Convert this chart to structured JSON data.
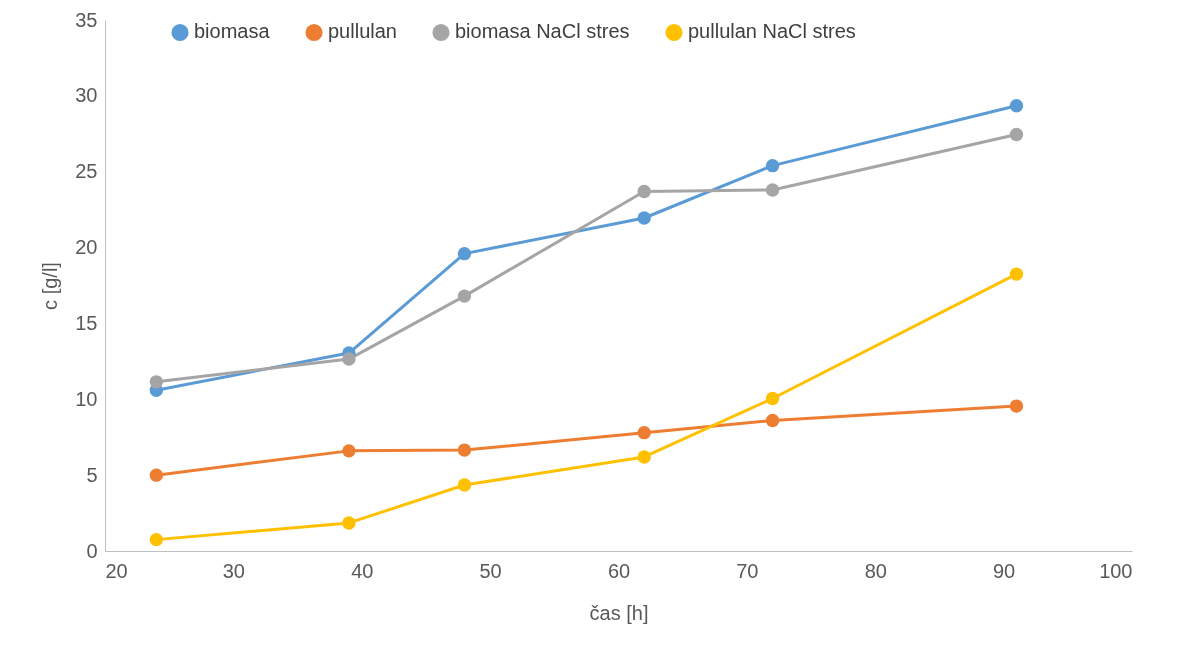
{
  "chart_data": {
    "type": "line",
    "xlabel": "čas [h]",
    "ylabel": "c [g/l]",
    "x": [
      24,
      39,
      48,
      62,
      72,
      91
    ],
    "series": [
      {
        "name": "biomasa",
        "color": "#5b9bd5",
        "values": [
          10.6,
          13.05,
          19.6,
          21.95,
          25.4,
          29.35
        ]
      },
      {
        "name": "pullulan",
        "color": "#ed7d31",
        "values": [
          5.0,
          6.6,
          6.65,
          7.8,
          8.6,
          9.55
        ]
      },
      {
        "name": "biomasa NaCl stres",
        "color": "#a5a5a5",
        "values": [
          11.15,
          12.65,
          16.8,
          23.7,
          23.8,
          27.45
        ]
      },
      {
        "name": "pullulan NaCl stres",
        "color": "#ffc000",
        "values": [
          0.75,
          1.85,
          4.35,
          6.2,
          10.05,
          18.25
        ]
      }
    ],
    "xlim": [
      20,
      100
    ],
    "xticks": [
      20,
      30,
      40,
      50,
      60,
      70,
      80,
      90,
      100
    ],
    "ylim": [
      0,
      35
    ],
    "yticks": [
      0,
      5,
      10,
      15,
      20,
      25,
      30,
      35
    ],
    "grid": false,
    "legend": "top",
    "marker": "circle",
    "line_style": "solid"
  }
}
